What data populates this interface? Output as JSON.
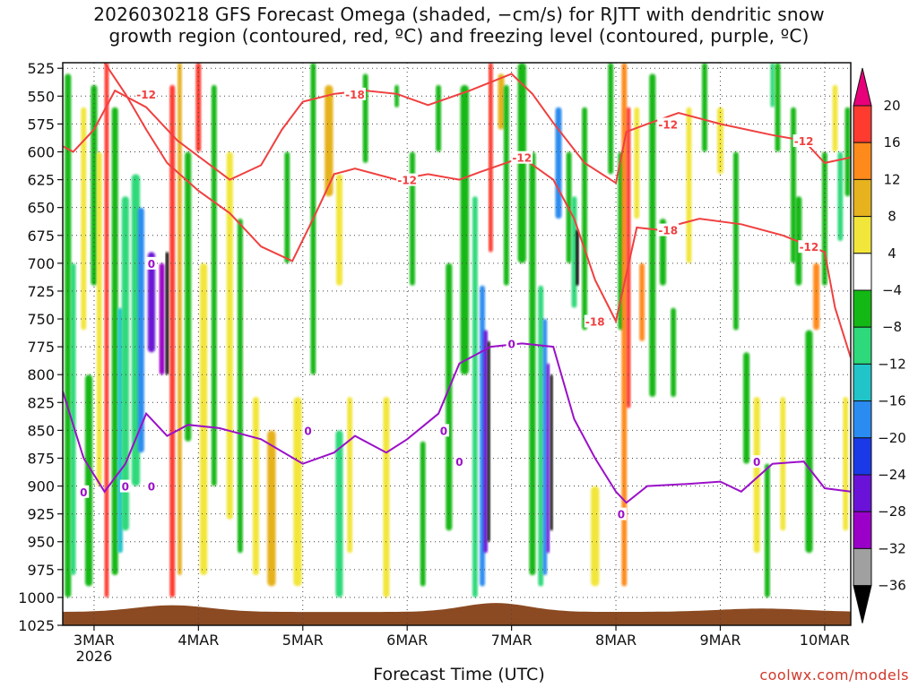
{
  "title": {
    "line1": "2026030218 GFS Forecast Omega (shaded, −cm/s) for RJTT with dendritic snow",
    "line2": "growth region (contoured, red, ºC) and freezing level (contoured, purple, ºC)"
  },
  "x_axis_label": "Forecast Time (UTC)",
  "credit": "coolwx.com/models",
  "chart_data": {
    "type": "heatmap",
    "xlabel": "Forecast Time (UTC)",
    "x_ticks": [
      "3MAR",
      "4MAR",
      "5MAR",
      "6MAR",
      "7MAR",
      "8MAR",
      "9MAR",
      "10MAR"
    ],
    "x_tick_year": "2026",
    "xlim_days_from_3MAR": [
      -0.3,
      7.25
    ],
    "y_ticks_hpa": [
      "525",
      "550",
      "575",
      "600",
      "625",
      "650",
      "675",
      "700",
      "725",
      "750",
      "775",
      "800",
      "825",
      "850",
      "875",
      "900",
      "925",
      "950",
      "975",
      "1000",
      "1025"
    ],
    "ylim_hpa": [
      520,
      1025
    ],
    "colorbar": {
      "label_values": [
        "20",
        "16",
        "12",
        "8",
        "4",
        "−4",
        "−8",
        "−12",
        "−16",
        "−20",
        "−24",
        "−28",
        "−32",
        "−36"
      ],
      "colors": [
        "#e8007a",
        "#ff3b2f",
        "#ff8a1c",
        "#e6b21e",
        "#f2e63a",
        "#ffffff",
        "#14b814",
        "#2dd97a",
        "#21c4c8",
        "#2a8cf0",
        "#1a3ae8",
        "#6a12d8",
        "#9b00c8",
        "#a0a0a0",
        "#000000"
      ]
    },
    "red_contour_labels": [
      "-12",
      "-18",
      "-12",
      "-12",
      "-18",
      "-12",
      "-18",
      "-12",
      "-12"
    ],
    "purple_contour_labels": [
      "0",
      "0",
      "0",
      "0",
      "0",
      "0",
      "0",
      "0",
      "0",
      "0"
    ],
    "red_contour_minus18": [
      [
        -0.3,
        595
      ],
      [
        -0.2,
        600
      ],
      [
        0.0,
        580
      ],
      [
        0.2,
        545
      ],
      [
        0.5,
        560
      ],
      [
        0.8,
        590
      ],
      [
        1.3,
        625
      ],
      [
        1.6,
        612
      ],
      [
        1.8,
        580
      ],
      [
        2.0,
        555
      ],
      [
        2.3,
        548
      ],
      [
        2.6,
        545
      ],
      [
        2.9,
        548
      ],
      [
        3.2,
        558
      ],
      [
        3.6,
        545
      ],
      [
        4.0,
        530
      ],
      [
        4.2,
        548
      ],
      [
        4.4,
        574
      ],
      [
        4.7,
        610
      ],
      [
        5.0,
        628
      ],
      [
        5.1,
        582
      ],
      [
        5.3,
        575
      ],
      [
        5.6,
        565
      ],
      [
        6.0,
        575
      ],
      [
        6.5,
        585
      ],
      [
        6.8,
        590
      ],
      [
        7.0,
        610
      ],
      [
        7.25,
        605
      ]
    ],
    "red_contour_minus12": [
      [
        0.1,
        520
      ],
      [
        0.3,
        548
      ],
      [
        0.5,
        580
      ],
      [
        0.7,
        610
      ],
      [
        1.0,
        635
      ],
      [
        1.3,
        655
      ],
      [
        1.6,
        685
      ],
      [
        1.9,
        698
      ],
      [
        2.1,
        660
      ],
      [
        2.3,
        620
      ],
      [
        2.5,
        615
      ],
      [
        2.9,
        625
      ],
      [
        3.2,
        620
      ],
      [
        3.5,
        625
      ],
      [
        3.7,
        618
      ],
      [
        4.1,
        605
      ],
      [
        4.4,
        625
      ],
      [
        4.6,
        660
      ],
      [
        4.8,
        715
      ],
      [
        5.0,
        752
      ],
      [
        5.2,
        668
      ],
      [
        5.4,
        670
      ],
      [
        5.8,
        660
      ],
      [
        6.2,
        665
      ],
      [
        6.6,
        675
      ],
      [
        7.0,
        690
      ],
      [
        7.1,
        740
      ],
      [
        7.25,
        785
      ]
    ],
    "purple_contour_0": [
      [
        -0.3,
        815
      ],
      [
        -0.1,
        875
      ],
      [
        0.1,
        905
      ],
      [
        0.3,
        880
      ],
      [
        0.5,
        835
      ],
      [
        0.7,
        855
      ],
      [
        0.9,
        845
      ],
      [
        1.2,
        848
      ],
      [
        1.6,
        858
      ],
      [
        2.0,
        880
      ],
      [
        2.3,
        870
      ],
      [
        2.5,
        855
      ],
      [
        2.8,
        870
      ],
      [
        3.0,
        858
      ],
      [
        3.3,
        835
      ],
      [
        3.5,
        790
      ],
      [
        3.8,
        775
      ],
      [
        4.1,
        772
      ],
      [
        4.4,
        775
      ],
      [
        4.6,
        840
      ],
      [
        4.8,
        875
      ],
      [
        5.0,
        905
      ],
      [
        5.1,
        915
      ],
      [
        5.3,
        900
      ],
      [
        5.7,
        898
      ],
      [
        6.0,
        896
      ],
      [
        6.2,
        905
      ],
      [
        6.5,
        880
      ],
      [
        6.8,
        878
      ],
      [
        7.0,
        902
      ],
      [
        7.25,
        905
      ]
    ]
  }
}
